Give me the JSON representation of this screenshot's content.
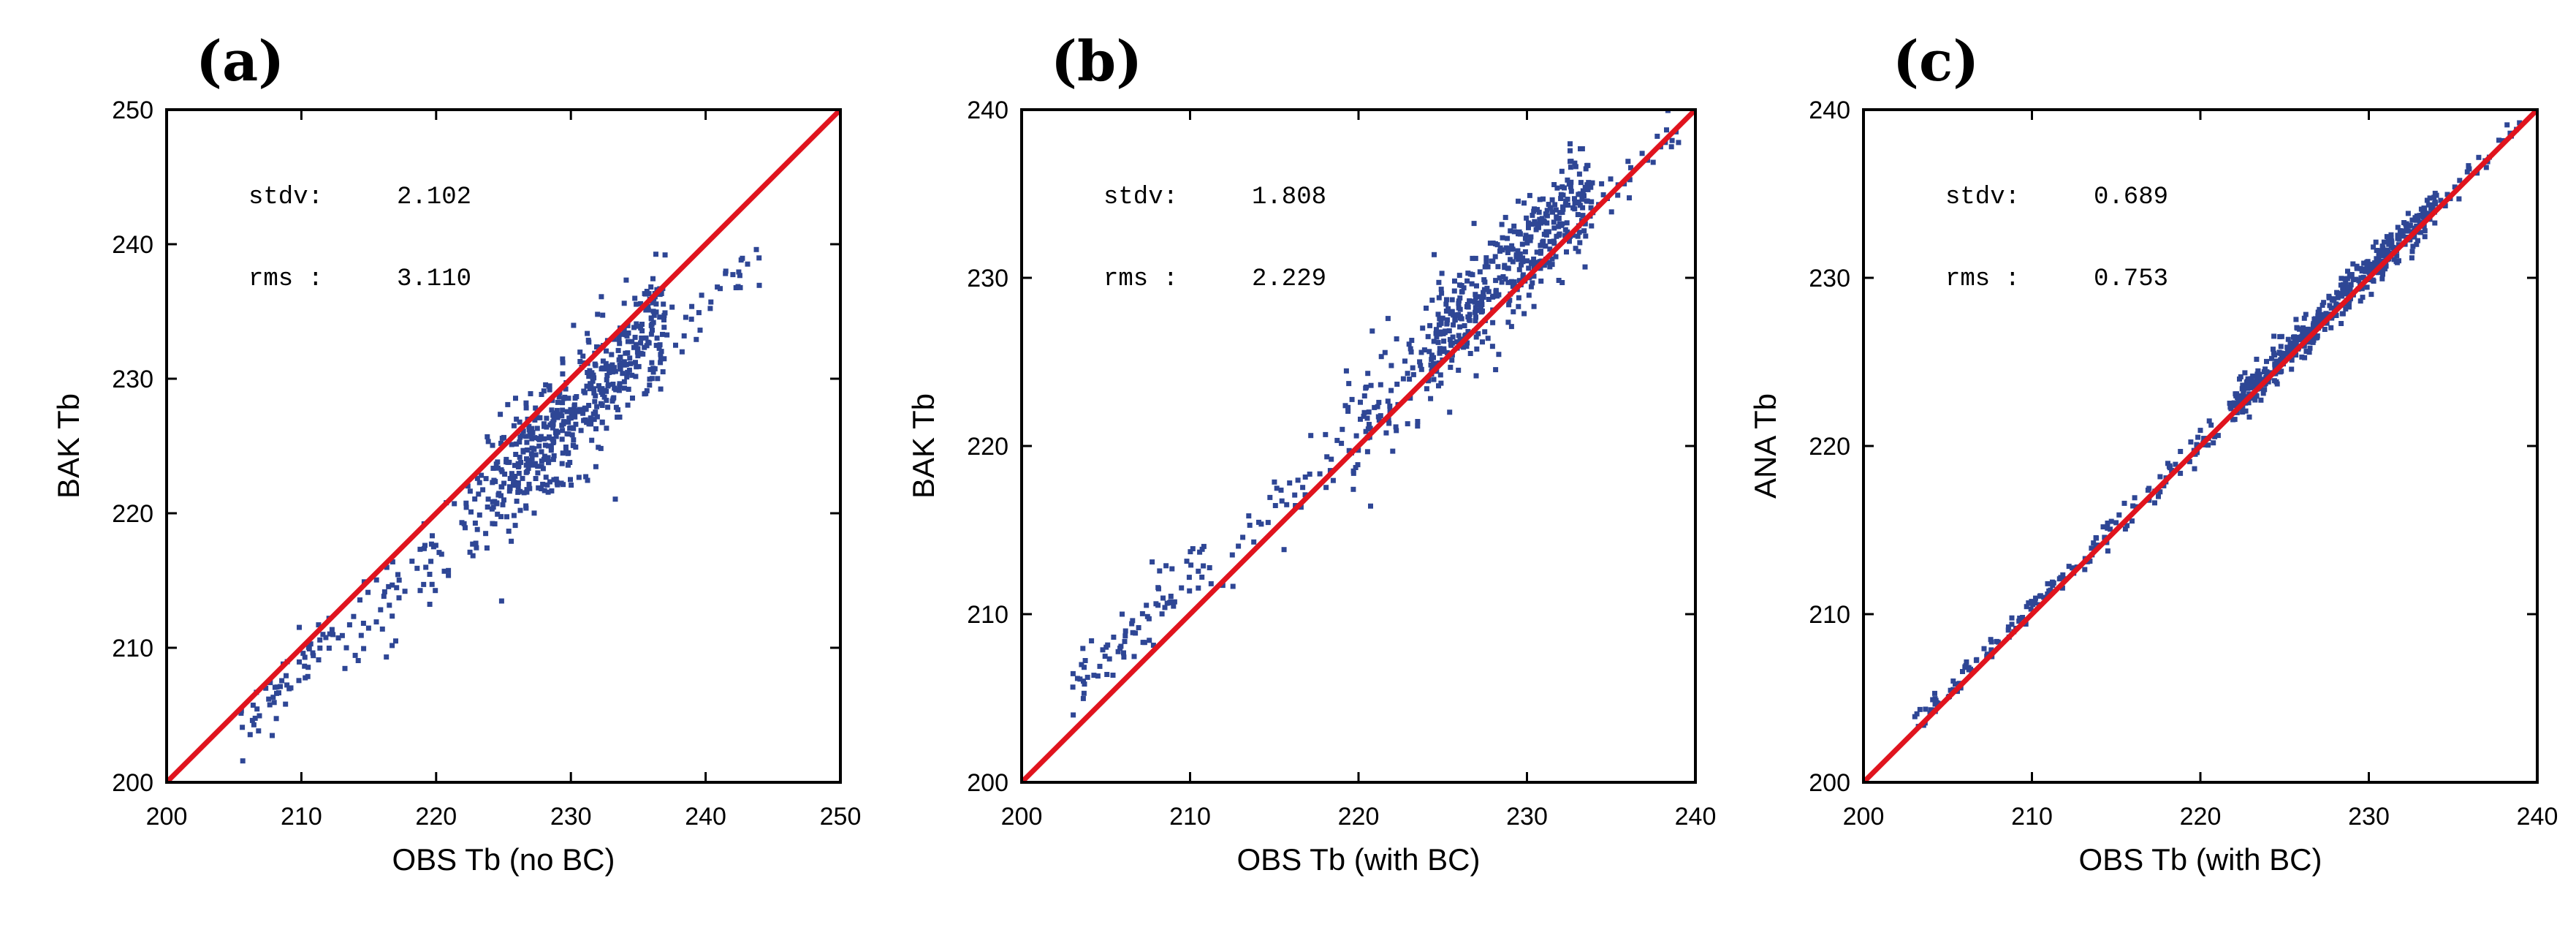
{
  "colors": {
    "points": "#2e4695",
    "line": "#e0141e",
    "frame": "#000000"
  },
  "chart_data": [
    {
      "type": "scatter",
      "panel_label": "(a)",
      "xlabel": "OBS Tb (no BC)",
      "ylabel": "BAK Tb",
      "xlim": [
        200,
        250
      ],
      "ylim": [
        200,
        250
      ],
      "xticks": [
        200,
        210,
        220,
        230,
        240,
        250
      ],
      "yticks": [
        200,
        210,
        220,
        230,
        240,
        250
      ],
      "stats": {
        "stdv_label": "stdv:",
        "stdv_value": "2.102",
        "rms_label": "rms :",
        "rms_value": "3.110"
      },
      "reference_line": "1:1",
      "clusters": [
        {
          "x_range": [
            205.5,
            213
          ],
          "bias": -1.3,
          "spread": 1.0,
          "count": 60
        },
        {
          "x_range": [
            213,
            222
          ],
          "bias": -2.8,
          "spread": 1.8,
          "count": 60
        },
        {
          "x_range": [
            222,
            226
          ],
          "bias": -2.5,
          "spread": 2.2,
          "count": 90
        },
        {
          "x_range": [
            226,
            237
          ],
          "bias": -2.6,
          "spread": 2.3,
          "count": 450
        },
        {
          "x_range": [
            237,
            244
          ],
          "bias": -4.5,
          "spread": 1.2,
          "count": 30
        }
      ]
    },
    {
      "type": "scatter",
      "panel_label": "(b)",
      "xlabel": "OBS Tb (with BC)",
      "ylabel": "BAK Tb",
      "xlim": [
        200,
        240
      ],
      "ylim": [
        200,
        240
      ],
      "xticks": [
        200,
        210,
        220,
        230,
        240
      ],
      "yticks": [
        200,
        210,
        220,
        230,
        240
      ],
      "stats": {
        "stdv_label": "stdv:",
        "stdv_value": "1.808",
        "rms_label": "rms :",
        "rms_value": "2.229"
      },
      "reference_line": "1:1",
      "clusters": [
        {
          "x_range": [
            203,
            211
          ],
          "bias": 2.5,
          "spread": 0.9,
          "count": 80
        },
        {
          "x_range": [
            211,
            219
          ],
          "bias": 1.0,
          "spread": 1.2,
          "count": 40
        },
        {
          "x_range": [
            219,
            224
          ],
          "bias": 1.5,
          "spread": 1.5,
          "count": 80
        },
        {
          "x_range": [
            224,
            234
          ],
          "bias": 1.4,
          "spread": 1.6,
          "count": 450
        },
        {
          "x_range": [
            234,
            239
          ],
          "bias": 0.5,
          "spread": 0.8,
          "count": 25
        }
      ]
    },
    {
      "type": "scatter",
      "panel_label": "(c)",
      "xlabel": "OBS Tb (with BC)",
      "ylabel": "ANA Tb",
      "xlim": [
        200,
        240
      ],
      "ylim": [
        200,
        240
      ],
      "xticks": [
        200,
        210,
        220,
        230,
        240
      ],
      "yticks": [
        200,
        210,
        220,
        230,
        240
      ],
      "stats": {
        "stdv_label": "stdv:",
        "stdv_value": "0.689",
        "rms_label": "rms :",
        "rms_value": "0.753"
      },
      "reference_line": "1:1",
      "clusters": [
        {
          "x_range": [
            203,
            212
          ],
          "bias": 0.4,
          "spread": 0.35,
          "count": 90
        },
        {
          "x_range": [
            212,
            222
          ],
          "bias": 0.2,
          "spread": 0.45,
          "count": 80
        },
        {
          "x_range": [
            222,
            234
          ],
          "bias": 0.4,
          "spread": 0.55,
          "count": 500
        },
        {
          "x_range": [
            234,
            239
          ],
          "bias": 0.2,
          "spread": 0.4,
          "count": 25
        }
      ]
    }
  ]
}
